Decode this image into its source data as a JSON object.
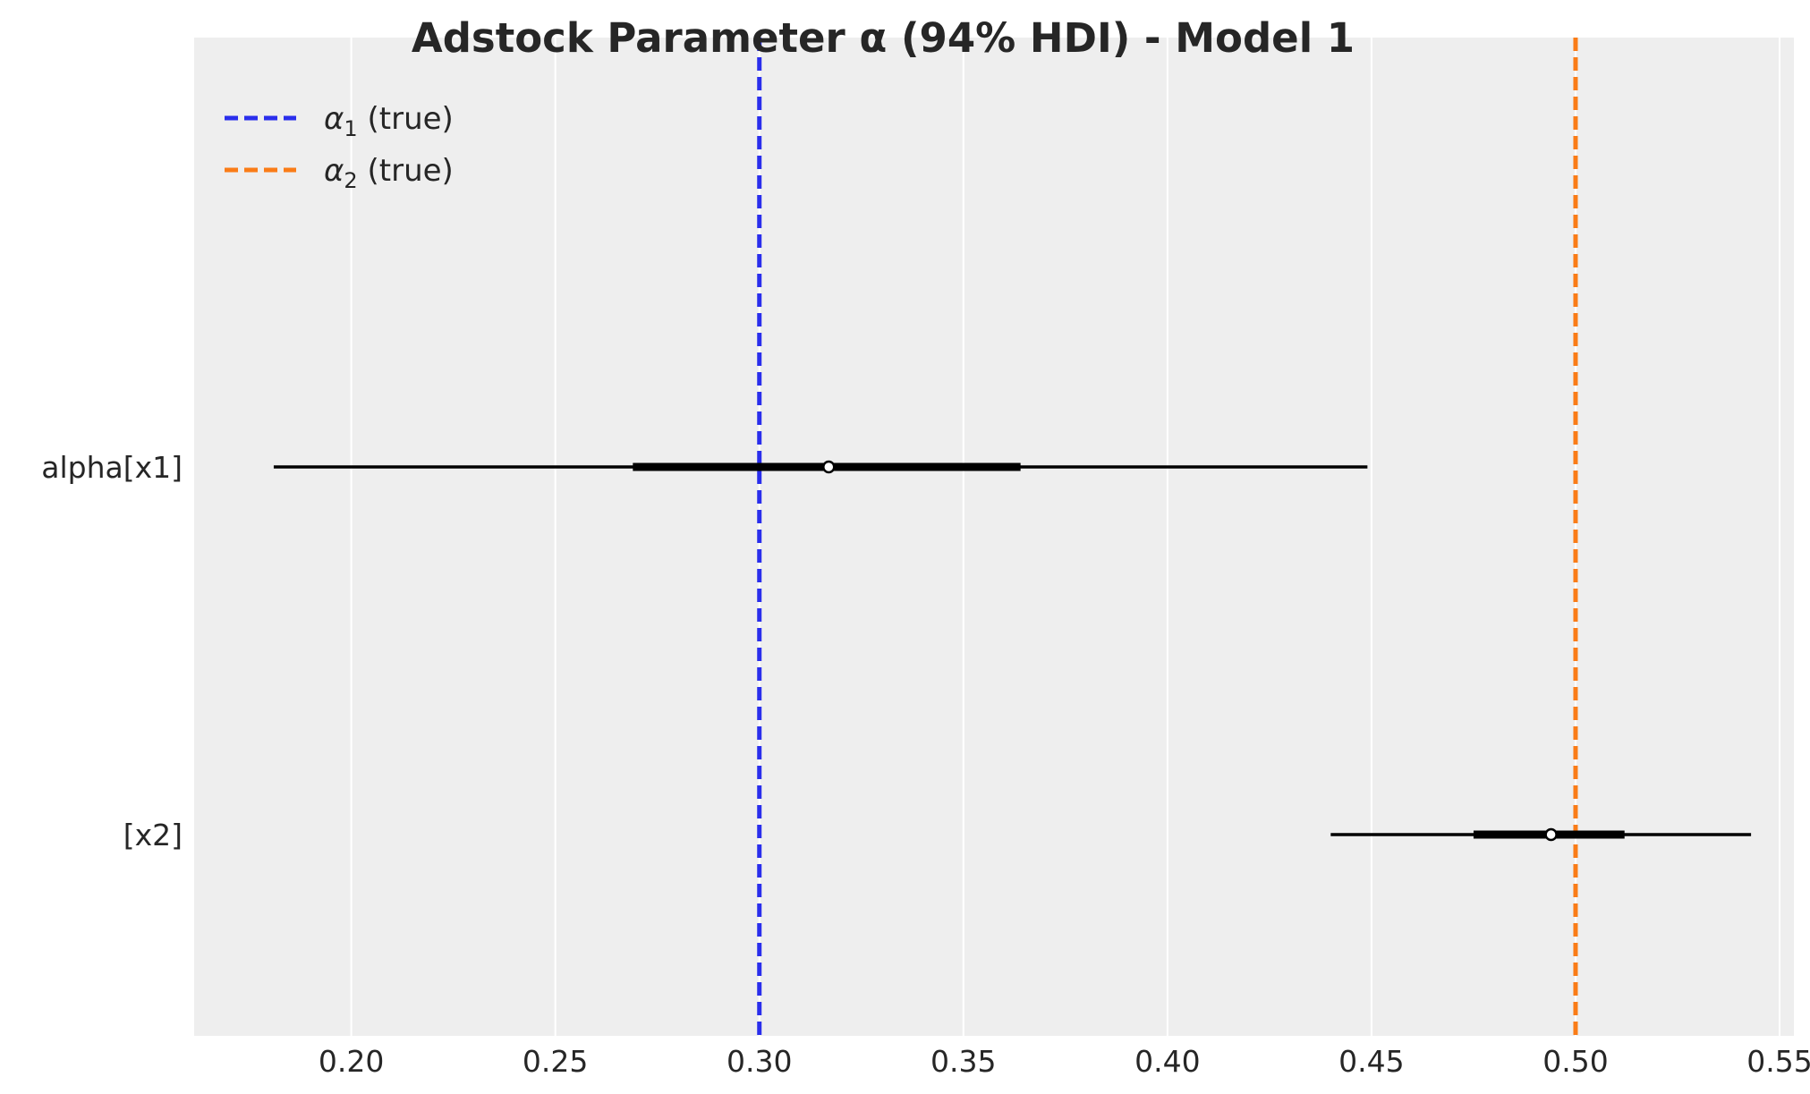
{
  "chart_data": {
    "type": "forest",
    "title": "Adstock Parameter α (94% HDI) - Model 1",
    "xlim": [
      0.1615,
      0.5535
    ],
    "xticks": [
      0.2,
      0.25,
      0.3,
      0.35,
      0.4,
      0.45,
      0.5,
      0.55
    ],
    "xtick_labels": [
      "0.20",
      "0.25",
      "0.30",
      "0.35",
      "0.40",
      "0.45",
      "0.50",
      "0.55"
    ],
    "grid": true,
    "rows": [
      {
        "label": "alpha[x1]",
        "hdi_low": 0.181,
        "hdi_high": 0.449,
        "iqr_low": 0.269,
        "iqr_high": 0.364,
        "point": 0.317
      },
      {
        "label": "[x2]",
        "hdi_low": 0.44,
        "hdi_high": 0.543,
        "iqr_low": 0.475,
        "iqr_high": 0.512,
        "point": 0.494
      }
    ],
    "reference_lines": [
      {
        "value": 0.3,
        "color": "#2a2eec",
        "style": "dashed"
      },
      {
        "value": 0.5,
        "color": "#fa7c17",
        "style": "dashed"
      }
    ],
    "legend": {
      "placement": "top-left",
      "entries": [
        {
          "symbol": "α",
          "subscript": "1",
          "suffix": " (true)",
          "color": "#2a2eec"
        },
        {
          "symbol": "α",
          "subscript": "2",
          "suffix": " (true)",
          "color": "#fa7c17"
        }
      ]
    }
  },
  "colors": {
    "plot_background": "#eeeeee",
    "grid": "#ffffff",
    "interval": "#000000"
  }
}
